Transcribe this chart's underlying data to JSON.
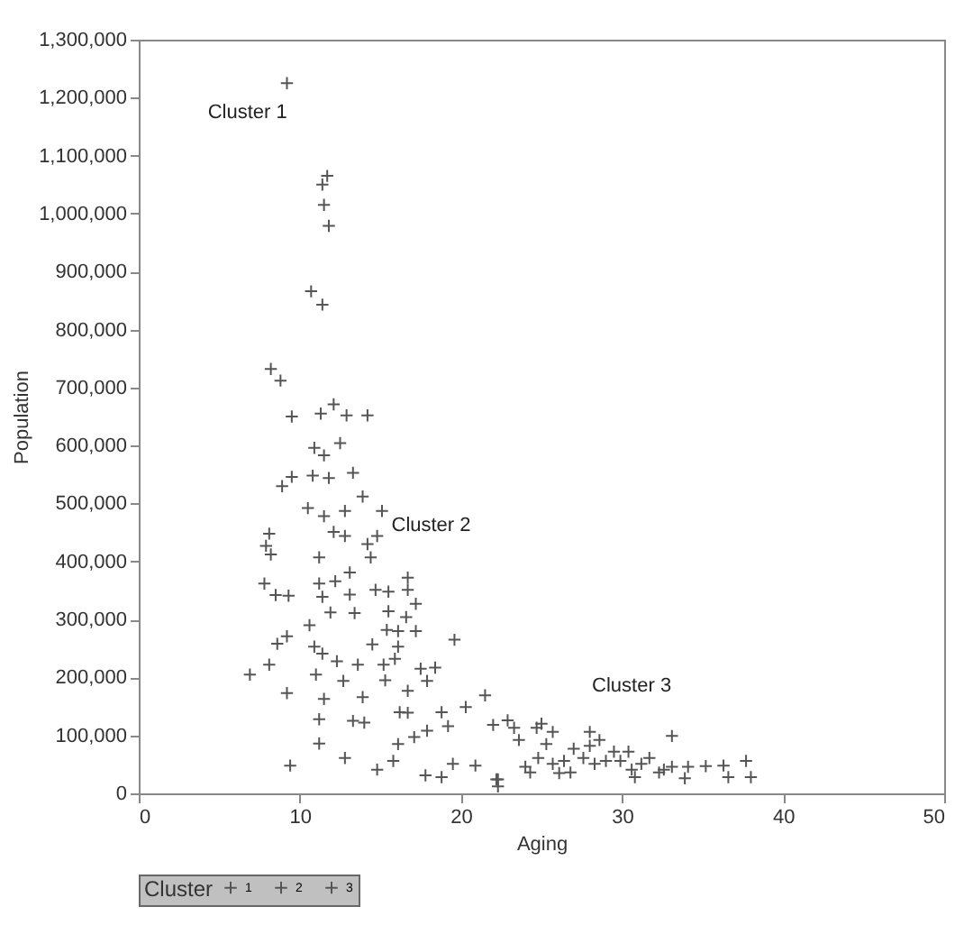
{
  "chart_data": {
    "type": "scatter",
    "xlabel": "Aging",
    "ylabel": "Population",
    "legend_title": "Cluster",
    "legend": "bottom",
    "marker": "cross",
    "grid": false,
    "xlim": [
      0,
      50
    ],
    "xticks": [
      0,
      10,
      20,
      30,
      40,
      50
    ],
    "ylim": [
      0,
      1300000
    ],
    "yticks": [
      0,
      {
        "value": 100000,
        "label": "100,000"
      },
      {
        "value": 200000,
        "label": "200,000"
      },
      {
        "value": 300000,
        "label": "300,000"
      },
      {
        "value": 400000,
        "label": "400,000"
      },
      {
        "value": 500000,
        "label": "500,000"
      },
      {
        "value": 600000,
        "label": "600,000"
      },
      {
        "value": 700000,
        "label": "700,000"
      },
      {
        "value": 800000,
        "label": "800,000"
      },
      {
        "value": 900000,
        "label": "900,000"
      },
      {
        "value": 1000000,
        "label": "1,000,000"
      },
      {
        "value": 1100000,
        "label": "1,100,000"
      },
      {
        "value": 1200000,
        "label": "1,200,000"
      },
      {
        "value": 1300000,
        "label": "1,300,000"
      }
    ],
    "annotations": [
      "Cluster 1",
      "Cluster 2",
      "Cluster 3"
    ],
    "series": [
      {
        "name": "1",
        "color": "#555555",
        "x": [
          9.2,
          11.7,
          11.4,
          11.5,
          11.8,
          10.7,
          11.4,
          8.2,
          8.8
        ],
        "values": [
          1225000,
          1065000,
          1050000,
          1015000,
          979000,
          866000,
          843000,
          732000,
          712000
        ]
      },
      {
        "name": "2",
        "color": "#555555",
        "x": [
          9.5,
          11.3,
          12.1,
          12.9,
          14.2,
          10.9,
          11.5,
          12.5,
          9.5,
          8.9,
          10.8,
          11.8,
          13.3,
          13.9,
          10.5,
          11.5,
          12.8,
          15.1,
          12.1,
          12.8,
          14.2,
          14.8,
          14.4,
          8.1,
          7.9,
          8.2,
          11.2,
          13.1,
          7.8,
          8.5,
          9.3,
          11.2,
          12.2,
          11.4,
          13.1,
          14.7,
          15.5,
          16.7,
          16.7,
          11.9,
          13.4,
          15.5,
          17.2,
          16.6,
          10.6,
          15.4,
          16.1,
          17.2,
          19.6,
          9.2,
          8.6,
          10.9,
          14.5,
          16.1,
          11.4,
          12.3,
          13.6,
          15.2,
          15.9,
          17.5,
          18.4,
          8.1,
          6.9,
          11.0,
          12.7,
          15.3,
          16.7,
          17.9,
          9.2,
          11.5,
          13.9,
          16.2,
          16.7,
          11.2,
          13.3,
          14.0,
          18.8,
          11.2,
          16.1,
          17.1,
          17.9,
          19.2,
          12.8,
          9.4,
          14.8,
          15.8,
          17.8,
          18.8,
          19.5
        ],
        "values": [
          650000,
          655000,
          671000,
          652000,
          652000,
          596000,
          583000,
          604000,
          546000,
          530000,
          548000,
          544000,
          553000,
          512000,
          492000,
          478000,
          487000,
          487000,
          451000,
          444000,
          430000,
          444000,
          407000,
          448000,
          427000,
          412000,
          407000,
          381000,
          362000,
          342000,
          341000,
          362000,
          366000,
          339000,
          343000,
          351000,
          348000,
          372000,
          351000,
          312000,
          311000,
          314000,
          327000,
          304000,
          290000,
          282000,
          280000,
          280000,
          265000,
          271000,
          258000,
          253000,
          257000,
          253000,
          241000,
          228000,
          222000,
          222000,
          232000,
          215000,
          217000,
          222000,
          205000,
          205000,
          194000,
          195000,
          177000,
          194000,
          173000,
          163000,
          166000,
          140000,
          139000,
          128000,
          125000,
          122000,
          140000,
          86000,
          85000,
          97000,
          108000,
          116000,
          61000,
          48000,
          41000,
          56000,
          31000,
          28000,
          51000
        ]
      },
      {
        "name": "3",
        "color": "#555555",
        "x": [
          20.3,
          21.5,
          20.9,
          22.3,
          22.3,
          22.0,
          22.9,
          23.3,
          22.2,
          23.6,
          24.0,
          24.3,
          24.7,
          25.0,
          25.7,
          25.3,
          24.8,
          25.7,
          26.4,
          26.8,
          27.0,
          27.6,
          28.0,
          28.6,
          28.0,
          28.3,
          29.5,
          29.9,
          30.4,
          30.6,
          31.2,
          31.7,
          32.3,
          33.1,
          33.1,
          34.1,
          33.9,
          35.2,
          36.3,
          36.6,
          37.7,
          38.0,
          26.1,
          29.0,
          30.8,
          32.6
        ],
        "values": [
          149000,
          169000,
          48000,
          24000,
          12000,
          118000,
          126000,
          113000,
          24000,
          92000,
          46000,
          36000,
          113000,
          120000,
          106000,
          85000,
          61000,
          51000,
          56000,
          36000,
          77000,
          61000,
          106000,
          92000,
          82000,
          51000,
          72000,
          56000,
          72000,
          41000,
          51000,
          61000,
          36000,
          99000,
          46000,
          46000,
          26000,
          47000,
          48000,
          28000,
          56000,
          28000,
          35000,
          56000,
          28000,
          41000
        ]
      }
    ]
  }
}
